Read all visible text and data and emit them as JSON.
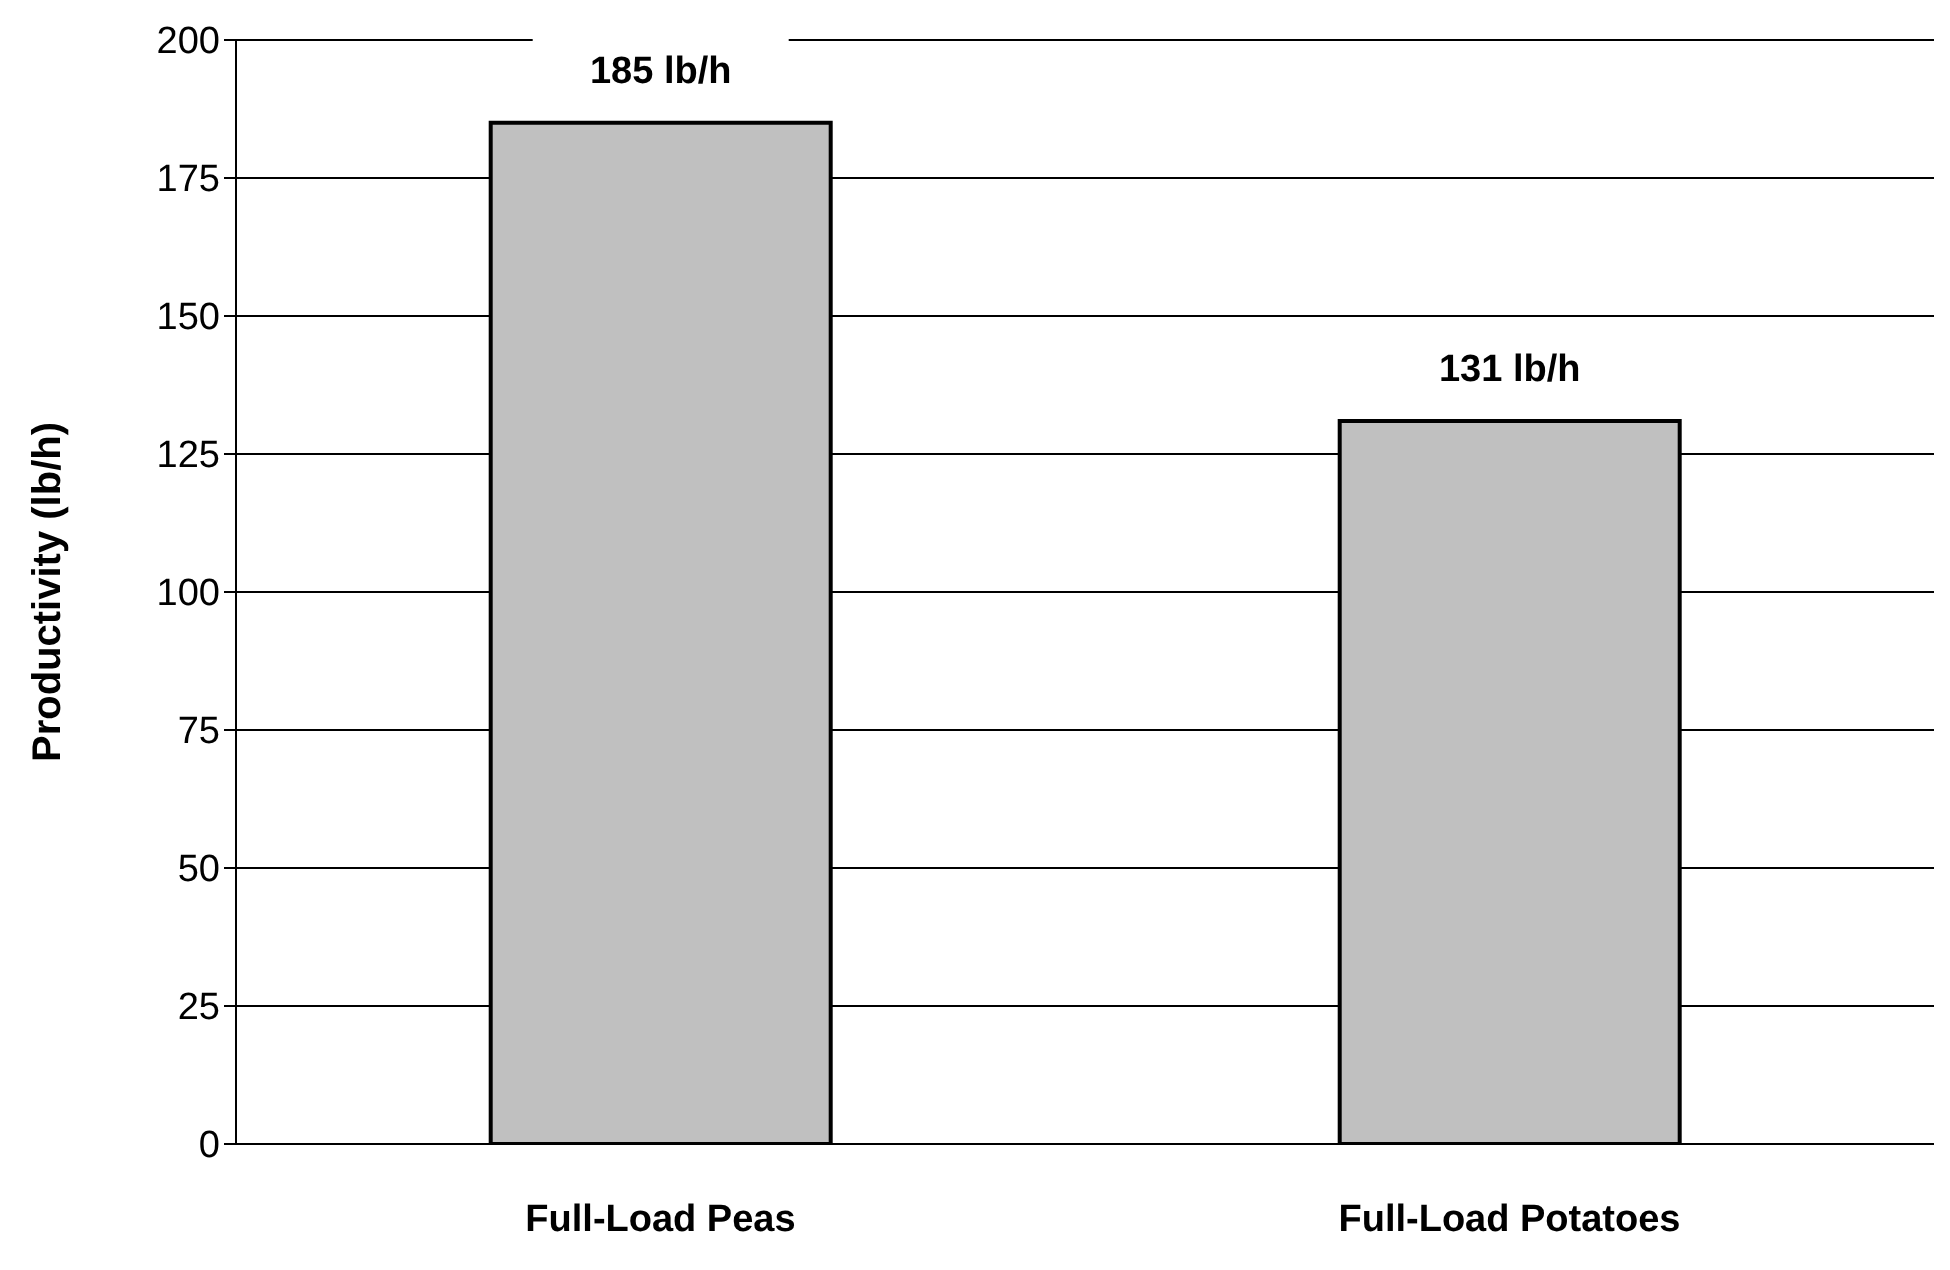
{
  "chart_data": {
    "type": "bar",
    "ylabel": "Productivity (lb/h)",
    "categories": [
      "Full-Load Peas",
      "Full-Load Potatoes"
    ],
    "values": [
      185,
      131
    ],
    "value_labels": [
      "185 lb/h",
      "131 lb/h"
    ],
    "color": "#c0c0c0",
    "ylim": [
      0,
      200
    ],
    "yticks": [
      0,
      25,
      50,
      75,
      100,
      125,
      150,
      175,
      200
    ],
    "grid": "y"
  }
}
